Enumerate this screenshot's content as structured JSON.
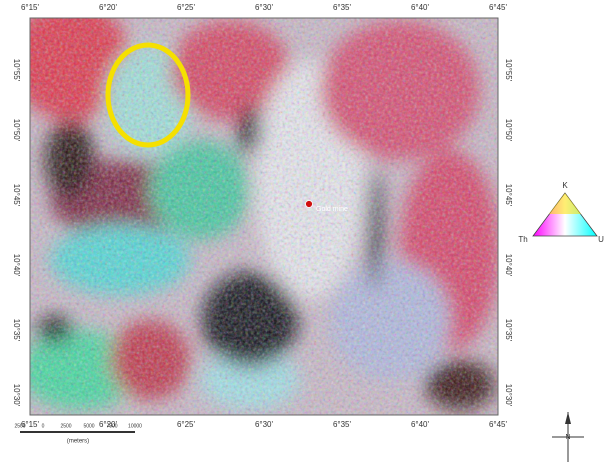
{
  "map": {
    "lon_ticks": [
      "6°15'",
      "6°20'",
      "6°25'",
      "6°30'",
      "6°35'",
      "6°40'",
      "6°45'"
    ],
    "lat_ticks": [
      "10°55'",
      "10°50'",
      "10°45'",
      "10°40'",
      "10°35'",
      "10°30'"
    ],
    "marker_label": "Gold mine",
    "legend": {
      "top": "K",
      "left": "Th",
      "right": "U"
    },
    "scale_bar": {
      "labels": [
        "2500",
        "0",
        "2500",
        "5000",
        "7500",
        "10000"
      ],
      "unit": "(meters)"
    },
    "north": "N"
  }
}
